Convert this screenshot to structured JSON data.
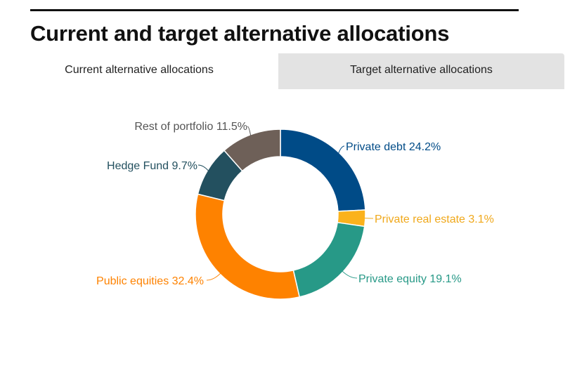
{
  "page": {
    "title": "Current and target alternative allocations"
  },
  "tabs": [
    {
      "label": "Current alternative allocations",
      "active": true
    },
    {
      "label": "Target alternative allocations",
      "active": false
    }
  ],
  "chart_data": {
    "type": "pie",
    "style": "donut",
    "title": "",
    "legend": "none",
    "slices": [
      {
        "label": "Private debt 24.2%",
        "value": 24.2,
        "color": "#004b87"
      },
      {
        "label": "Private real estate 3.1%",
        "value": 3.1,
        "color": "#fbb21c"
      },
      {
        "label": "Private equity 19.1%",
        "value": 19.1,
        "color": "#279987"
      },
      {
        "label": "Public equities 32.4%",
        "value": 32.4,
        "color": "#fe8200"
      },
      {
        "label": "Hedge Fund 9.7%",
        "value": 9.7,
        "color": "#23505f"
      },
      {
        "label": "Rest of portfolio 11.5%",
        "value": 11.5,
        "color": "#6e6058"
      }
    ],
    "label_colors": {
      "Private debt 24.2%": "#004b87",
      "Private real estate 3.1%": "#f0a81a",
      "Private equity 19.1%": "#279987",
      "Public equities 32.4%": "#fe8200",
      "Hedge Fund 9.7%": "#23505f",
      "Rest of portfolio 11.5%": "#555555"
    }
  }
}
